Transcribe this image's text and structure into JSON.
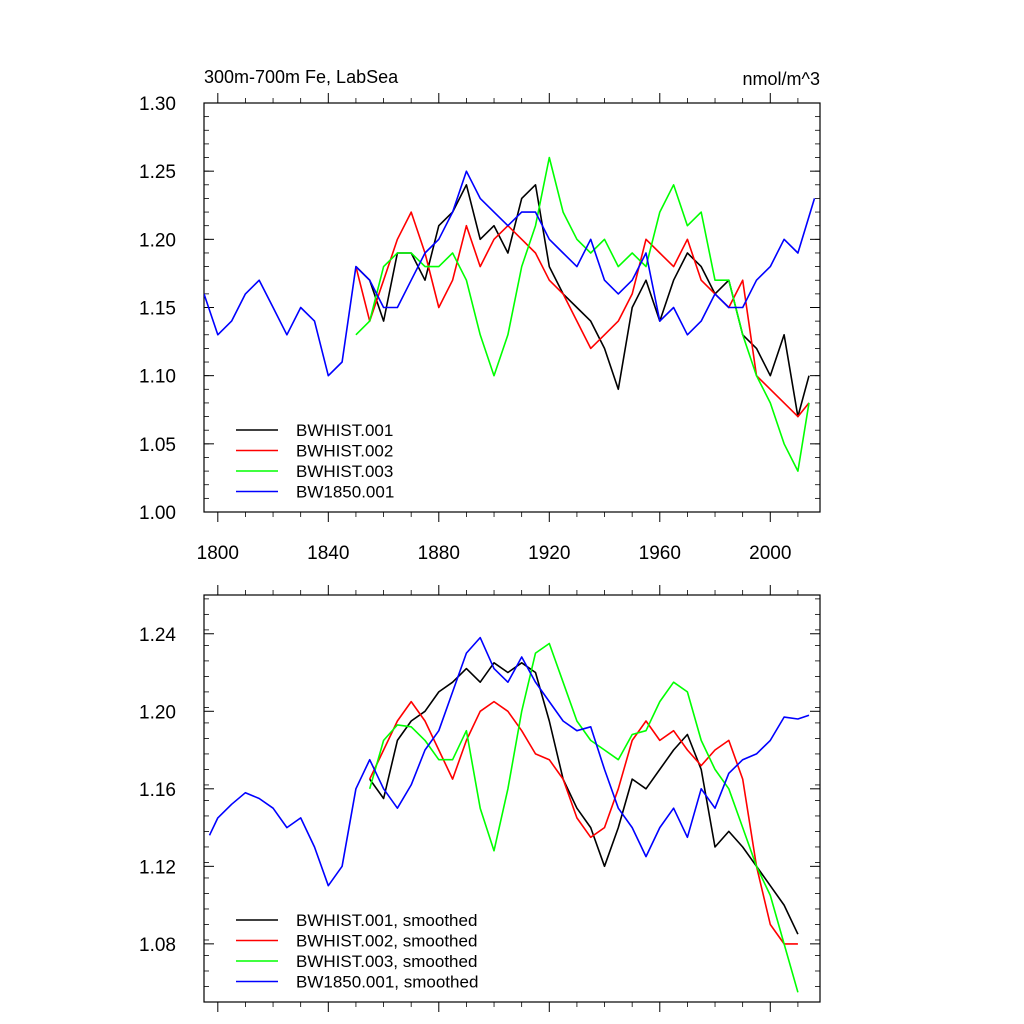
{
  "chart_data": [
    {
      "type": "line",
      "title_left": "300m-700m Fe, LabSea",
      "title_right": "nmol/m^3",
      "xlim": [
        1795,
        2018
      ],
      "ylim": [
        1.0,
        1.3
      ],
      "x_ticks": [
        "1800",
        "1840",
        "1880",
        "1920",
        "1960",
        "2000"
      ],
      "y_ticks": [
        "1.00",
        "1.05",
        "1.10",
        "1.15",
        "1.20",
        "1.25",
        "1.30"
      ],
      "legend_position": "bottom-left",
      "series": [
        {
          "name": "BWHIST.001",
          "color": "#000000",
          "x": [
            1850,
            1855,
            1860,
            1865,
            1870,
            1875,
            1880,
            1885,
            1890,
            1895,
            1900,
            1905,
            1910,
            1915,
            1920,
            1925,
            1930,
            1935,
            1940,
            1945,
            1950,
            1955,
            1960,
            1965,
            1970,
            1975,
            1980,
            1985,
            1990,
            1995,
            2000,
            2005,
            2010,
            2014
          ],
          "y": [
            1.18,
            1.17,
            1.14,
            1.19,
            1.19,
            1.17,
            1.21,
            1.22,
            1.24,
            1.2,
            1.21,
            1.19,
            1.23,
            1.24,
            1.18,
            1.16,
            1.15,
            1.14,
            1.12,
            1.09,
            1.15,
            1.17,
            1.14,
            1.17,
            1.19,
            1.18,
            1.16,
            1.17,
            1.13,
            1.12,
            1.1,
            1.13,
            1.07,
            1.1
          ]
        },
        {
          "name": "BWHIST.002",
          "color": "#ff0000",
          "x": [
            1850,
            1855,
            1860,
            1865,
            1870,
            1875,
            1880,
            1885,
            1890,
            1895,
            1900,
            1905,
            1910,
            1915,
            1920,
            1925,
            1930,
            1935,
            1940,
            1945,
            1950,
            1955,
            1960,
            1965,
            1970,
            1975,
            1980,
            1985,
            1990,
            1995,
            2000,
            2005,
            2010,
            2014
          ],
          "y": [
            1.18,
            1.14,
            1.17,
            1.2,
            1.22,
            1.19,
            1.15,
            1.17,
            1.21,
            1.18,
            1.2,
            1.21,
            1.2,
            1.19,
            1.17,
            1.16,
            1.14,
            1.12,
            1.13,
            1.14,
            1.16,
            1.2,
            1.19,
            1.18,
            1.2,
            1.17,
            1.16,
            1.15,
            1.17,
            1.1,
            1.09,
            1.08,
            1.07,
            1.08
          ]
        },
        {
          "name": "BWHIST.003",
          "color": "#00ff00",
          "x": [
            1850,
            1855,
            1860,
            1865,
            1870,
            1875,
            1880,
            1885,
            1890,
            1895,
            1900,
            1905,
            1910,
            1915,
            1920,
            1925,
            1930,
            1935,
            1940,
            1945,
            1950,
            1955,
            1960,
            1965,
            1970,
            1975,
            1980,
            1985,
            1990,
            1995,
            2000,
            2005,
            2010,
            2014
          ],
          "y": [
            1.13,
            1.14,
            1.18,
            1.19,
            1.19,
            1.18,
            1.18,
            1.19,
            1.17,
            1.13,
            1.1,
            1.13,
            1.18,
            1.21,
            1.26,
            1.22,
            1.2,
            1.19,
            1.2,
            1.18,
            1.19,
            1.18,
            1.22,
            1.24,
            1.21,
            1.22,
            1.17,
            1.17,
            1.13,
            1.1,
            1.08,
            1.05,
            1.03,
            1.08
          ]
        },
        {
          "name": "BW1850.001",
          "color": "#0000ff",
          "x": [
            1795,
            1800,
            1805,
            1810,
            1815,
            1820,
            1825,
            1830,
            1835,
            1840,
            1845,
            1850,
            1855,
            1860,
            1865,
            1870,
            1875,
            1880,
            1885,
            1890,
            1895,
            1900,
            1905,
            1910,
            1915,
            1920,
            1925,
            1930,
            1935,
            1940,
            1945,
            1950,
            1955,
            1960,
            1965,
            1970,
            1975,
            1980,
            1985,
            1990,
            1995,
            2000,
            2005,
            2010,
            2016
          ],
          "y": [
            1.16,
            1.13,
            1.14,
            1.16,
            1.17,
            1.15,
            1.13,
            1.15,
            1.14,
            1.1,
            1.11,
            1.18,
            1.17,
            1.15,
            1.15,
            1.17,
            1.19,
            1.2,
            1.22,
            1.25,
            1.23,
            1.22,
            1.21,
            1.22,
            1.22,
            1.2,
            1.19,
            1.18,
            1.2,
            1.17,
            1.16,
            1.17,
            1.19,
            1.14,
            1.15,
            1.13,
            1.14,
            1.16,
            1.15,
            1.15,
            1.17,
            1.18,
            1.2,
            1.19,
            1.23
          ]
        }
      ]
    },
    {
      "type": "line",
      "xlim": [
        1795,
        2018
      ],
      "ylim": [
        1.05,
        1.26
      ],
      "x_ticks": [
        "",
        "",
        "",
        "",
        "",
        ""
      ],
      "y_ticks": [
        "1.08",
        "1.12",
        "1.16",
        "1.20",
        "1.24"
      ],
      "legend_position": "bottom-left",
      "series": [
        {
          "name": "BWHIST.001, smoothed",
          "color": "#000000",
          "x": [
            1855,
            1860,
            1865,
            1870,
            1875,
            1880,
            1885,
            1890,
            1895,
            1900,
            1905,
            1910,
            1915,
            1920,
            1925,
            1930,
            1935,
            1940,
            1945,
            1950,
            1955,
            1960,
            1965,
            1970,
            1975,
            1980,
            1985,
            1990,
            1995,
            2000,
            2005,
            2010
          ],
          "y": [
            1.165,
            1.155,
            1.185,
            1.195,
            1.2,
            1.21,
            1.215,
            1.222,
            1.215,
            1.225,
            1.22,
            1.225,
            1.22,
            1.195,
            1.165,
            1.15,
            1.14,
            1.12,
            1.14,
            1.165,
            1.16,
            1.17,
            1.18,
            1.188,
            1.17,
            1.13,
            1.138,
            1.13,
            1.12,
            1.11,
            1.1,
            1.085
          ]
        },
        {
          "name": "BWHIST.002, smoothed",
          "color": "#ff0000",
          "x": [
            1855,
            1860,
            1865,
            1870,
            1875,
            1880,
            1885,
            1890,
            1895,
            1900,
            1905,
            1910,
            1915,
            1920,
            1925,
            1930,
            1935,
            1940,
            1945,
            1950,
            1955,
            1960,
            1965,
            1970,
            1975,
            1980,
            1985,
            1990,
            1995,
            2000,
            2005,
            2010
          ],
          "y": [
            1.165,
            1.18,
            1.195,
            1.205,
            1.195,
            1.18,
            1.165,
            1.185,
            1.2,
            1.205,
            1.2,
            1.19,
            1.178,
            1.175,
            1.165,
            1.145,
            1.135,
            1.14,
            1.16,
            1.185,
            1.195,
            1.185,
            1.19,
            1.18,
            1.172,
            1.18,
            1.185,
            1.165,
            1.12,
            1.09,
            1.08,
            1.08
          ]
        },
        {
          "name": "BWHIST.003, smoothed",
          "color": "#00ff00",
          "x": [
            1855,
            1860,
            1865,
            1870,
            1875,
            1880,
            1885,
            1890,
            1895,
            1900,
            1905,
            1910,
            1915,
            1920,
            1925,
            1930,
            1935,
            1940,
            1945,
            1950,
            1955,
            1960,
            1965,
            1970,
            1975,
            1980,
            1985,
            1990,
            1995,
            2000,
            2005,
            2010
          ],
          "y": [
            1.16,
            1.185,
            1.193,
            1.192,
            1.185,
            1.175,
            1.175,
            1.19,
            1.15,
            1.128,
            1.16,
            1.2,
            1.23,
            1.235,
            1.215,
            1.195,
            1.185,
            1.18,
            1.175,
            1.188,
            1.19,
            1.205,
            1.215,
            1.21,
            1.185,
            1.17,
            1.16,
            1.14,
            1.12,
            1.105,
            1.08,
            1.055
          ]
        },
        {
          "name": "BW1850.001, smoothed",
          "color": "#0000ff",
          "x": [
            1797,
            1800,
            1805,
            1810,
            1815,
            1820,
            1825,
            1830,
            1835,
            1840,
            1845,
            1850,
            1855,
            1860,
            1865,
            1870,
            1875,
            1880,
            1885,
            1890,
            1895,
            1900,
            1905,
            1910,
            1915,
            1920,
            1925,
            1930,
            1935,
            1940,
            1945,
            1950,
            1955,
            1960,
            1965,
            1970,
            1975,
            1980,
            1985,
            1990,
            1995,
            2000,
            2005,
            2010,
            2014
          ],
          "y": [
            1.136,
            1.145,
            1.152,
            1.158,
            1.155,
            1.15,
            1.14,
            1.145,
            1.13,
            1.11,
            1.12,
            1.16,
            1.175,
            1.16,
            1.15,
            1.162,
            1.18,
            1.19,
            1.21,
            1.23,
            1.238,
            1.222,
            1.215,
            1.228,
            1.215,
            1.205,
            1.195,
            1.19,
            1.192,
            1.17,
            1.15,
            1.14,
            1.125,
            1.14,
            1.15,
            1.135,
            1.16,
            1.15,
            1.168,
            1.175,
            1.178,
            1.185,
            1.197,
            1.196,
            1.198
          ]
        }
      ]
    }
  ]
}
